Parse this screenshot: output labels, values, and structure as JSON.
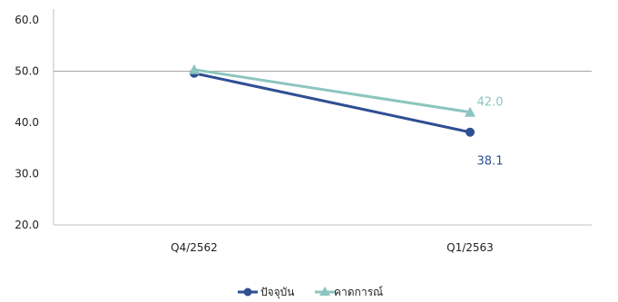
{
  "chart_data": {
    "type": "line",
    "categories": [
      "Q4/2562",
      "Q1/2563"
    ],
    "series": [
      {
        "name": "ปัจจุบัน",
        "values": [
          49.6,
          38.1
        ],
        "color": "#2f4f93",
        "marker": "circle",
        "labels": [
          "",
          "38.1"
        ]
      },
      {
        "name": "คาดการณ์",
        "values": [
          50.3,
          42.0
        ],
        "color": "#8cc5bf",
        "marker": "triangle",
        "labels": [
          "",
          "42.0"
        ]
      }
    ],
    "yticks": [
      "20.0",
      "30.0",
      "40.0",
      "50.0",
      "60.0"
    ],
    "ylim": [
      20,
      60
    ],
    "reference_line": 50,
    "legend_position": "bottom"
  }
}
